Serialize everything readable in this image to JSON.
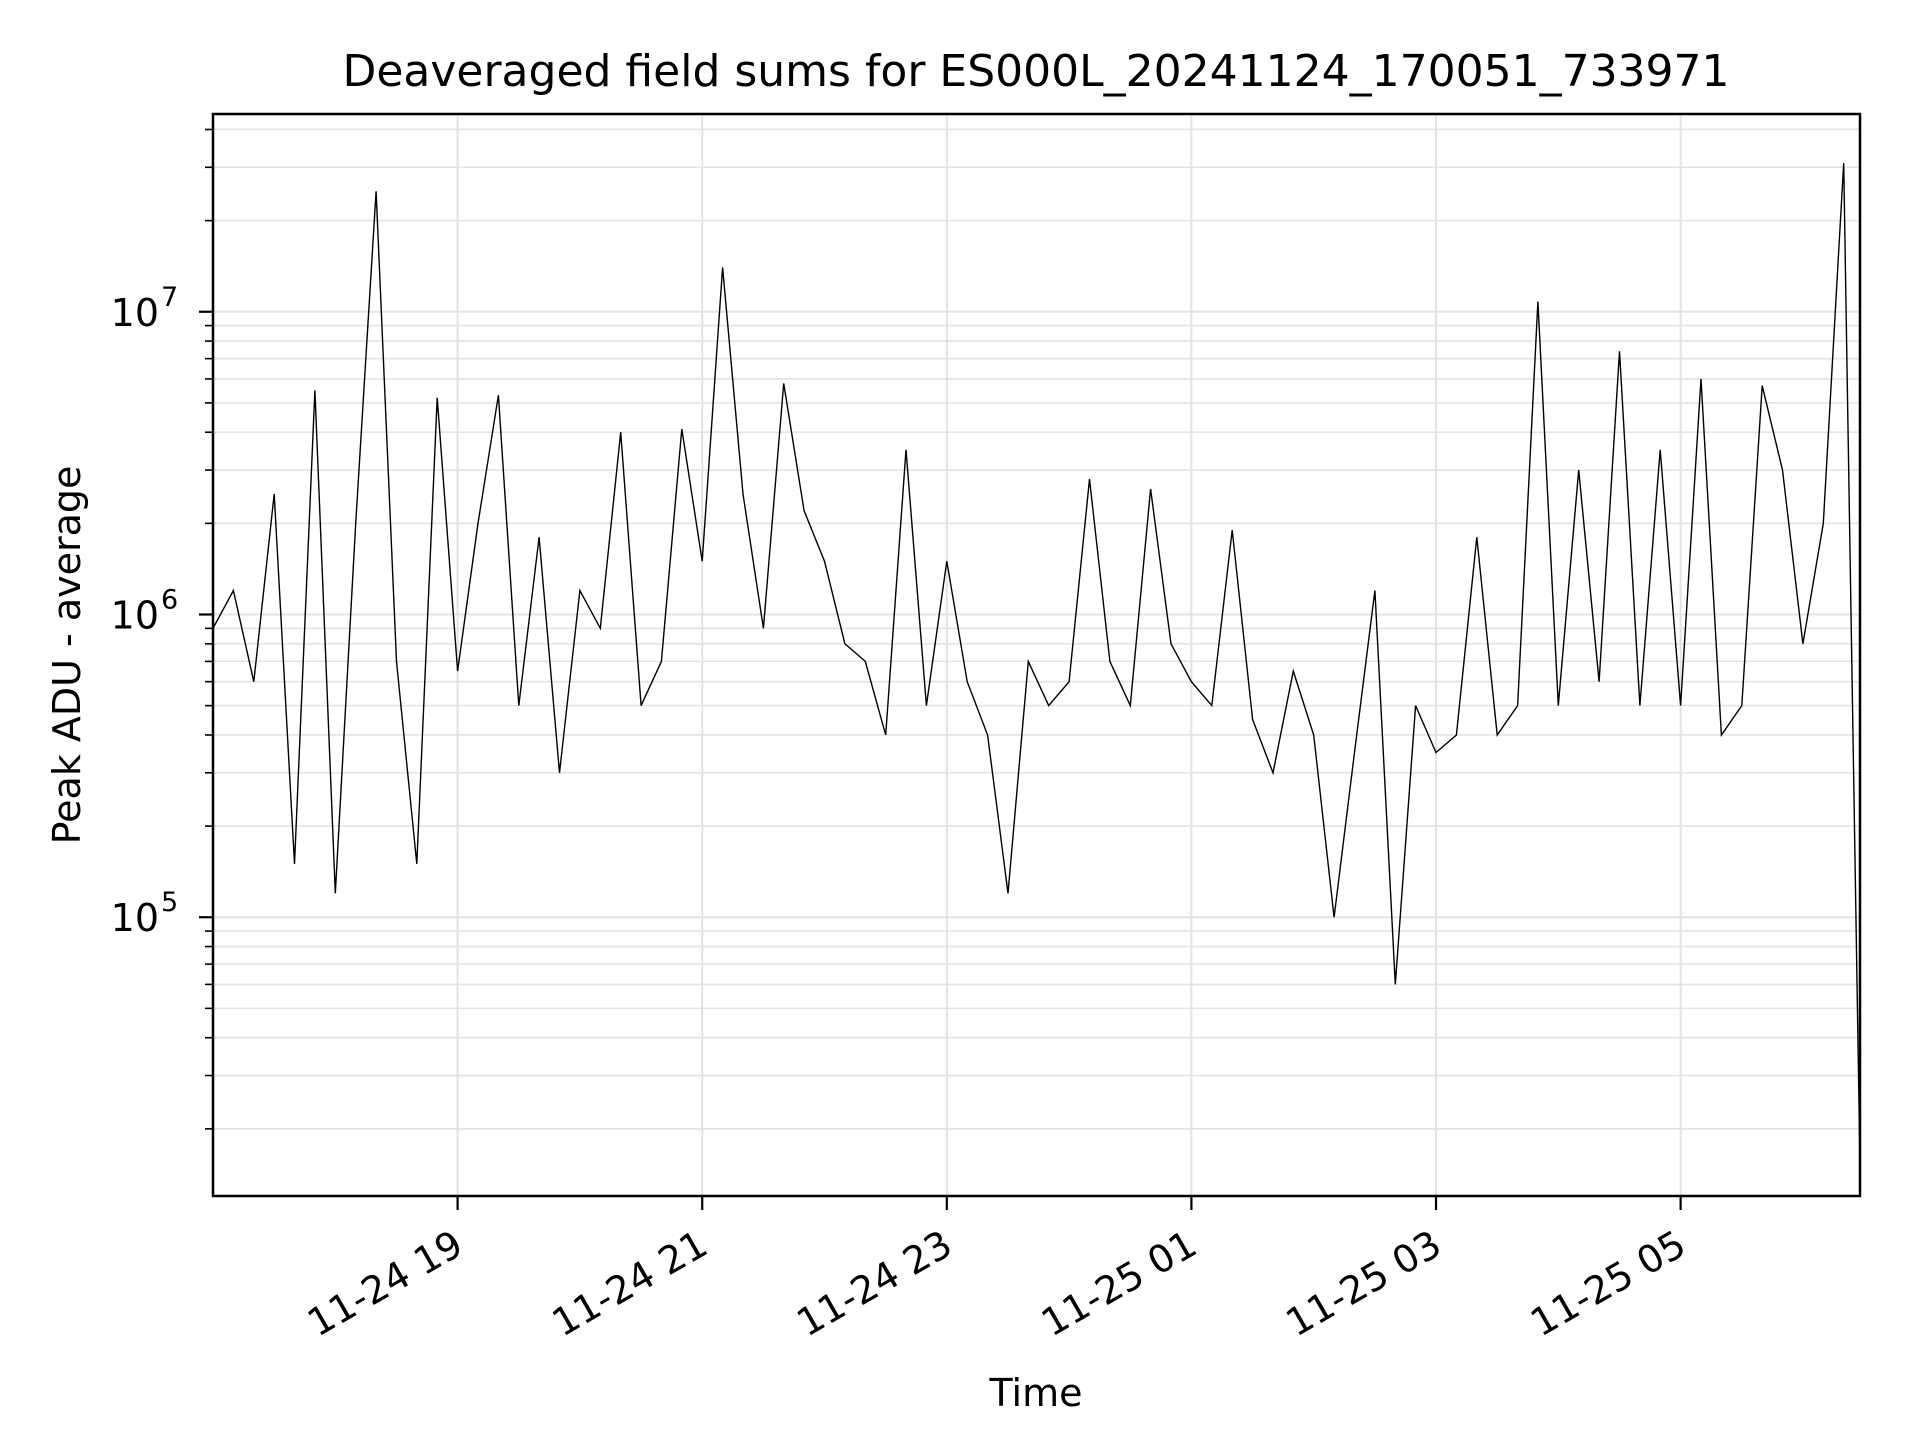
{
  "chart_data": {
    "type": "line",
    "title": "Deaveraged field sums for ES000L_20241124_170051_733971",
    "xlabel": "Time",
    "ylabel": "Peak ADU - average",
    "yscale": "log",
    "xlim": [
      "2024-11-24 17:00",
      "2024-11-25 06:28"
    ],
    "ylim": [
      12000,
      45000000
    ],
    "grid": true,
    "x_ticks": [
      {
        "value": "2024-11-24 19:00",
        "label": "11-24 19"
      },
      {
        "value": "2024-11-24 21:00",
        "label": "11-24 21"
      },
      {
        "value": "2024-11-24 23:00",
        "label": "11-24 23"
      },
      {
        "value": "2024-11-25 01:00",
        "label": "11-25 01"
      },
      {
        "value": "2024-11-25 03:00",
        "label": "11-25 03"
      },
      {
        "value": "2024-11-25 05:00",
        "label": "11-25 05"
      }
    ],
    "y_ticks": [
      {
        "value": 100000,
        "base": "10",
        "exp": "5"
      },
      {
        "value": 1000000,
        "base": "10",
        "exp": "6"
      },
      {
        "value": 10000000,
        "base": "10",
        "exp": "7"
      }
    ],
    "series": [
      {
        "color": "#000000",
        "x": [
          "2024-11-24 17:00",
          "2024-11-24 17:10",
          "2024-11-24 17:20",
          "2024-11-24 17:30",
          "2024-11-24 17:40",
          "2024-11-24 17:50",
          "2024-11-24 18:00",
          "2024-11-24 18:10",
          "2024-11-24 18:20",
          "2024-11-24 18:30",
          "2024-11-24 18:40",
          "2024-11-24 18:50",
          "2024-11-24 19:00",
          "2024-11-24 19:10",
          "2024-11-24 19:20",
          "2024-11-24 19:30",
          "2024-11-24 19:40",
          "2024-11-24 19:50",
          "2024-11-24 20:00",
          "2024-11-24 20:10",
          "2024-11-24 20:20",
          "2024-11-24 20:30",
          "2024-11-24 20:40",
          "2024-11-24 20:50",
          "2024-11-24 21:00",
          "2024-11-24 21:10",
          "2024-11-24 21:20",
          "2024-11-24 21:30",
          "2024-11-24 21:40",
          "2024-11-24 21:50",
          "2024-11-24 22:00",
          "2024-11-24 22:10",
          "2024-11-24 22:20",
          "2024-11-24 22:30",
          "2024-11-24 22:40",
          "2024-11-24 22:50",
          "2024-11-24 23:00",
          "2024-11-24 23:10",
          "2024-11-24 23:20",
          "2024-11-24 23:30",
          "2024-11-24 23:40",
          "2024-11-24 23:50",
          "2024-11-25 00:00",
          "2024-11-25 00:10",
          "2024-11-25 00:20",
          "2024-11-25 00:30",
          "2024-11-25 00:40",
          "2024-11-25 00:50",
          "2024-11-25 01:00",
          "2024-11-25 01:10",
          "2024-11-25 01:20",
          "2024-11-25 01:30",
          "2024-11-25 01:40",
          "2024-11-25 01:50",
          "2024-11-25 02:00",
          "2024-11-25 02:10",
          "2024-11-25 02:20",
          "2024-11-25 02:30",
          "2024-11-25 02:40",
          "2024-11-25 02:50",
          "2024-11-25 03:00",
          "2024-11-25 03:10",
          "2024-11-25 03:20",
          "2024-11-25 03:30",
          "2024-11-25 03:40",
          "2024-11-25 03:50",
          "2024-11-25 04:00",
          "2024-11-25 04:10",
          "2024-11-25 04:20",
          "2024-11-25 04:30",
          "2024-11-25 04:40",
          "2024-11-25 04:50",
          "2024-11-25 05:00",
          "2024-11-25 05:10",
          "2024-11-25 05:20",
          "2024-11-25 05:30",
          "2024-11-25 05:40",
          "2024-11-25 05:50",
          "2024-11-25 06:00",
          "2024-11-25 06:10",
          "2024-11-25 06:20",
          "2024-11-25 06:28"
        ],
        "y": [
          900000,
          1200000,
          600000,
          2500000,
          150000,
          5500000,
          120000,
          2000000,
          25000000,
          700000,
          150000,
          5200000,
          650000,
          2000000,
          5300000,
          500000,
          1800000,
          300000,
          1200000,
          900000,
          4000000,
          500000,
          700000,
          4100000,
          1500000,
          14000000,
          2500000,
          900000,
          5800000,
          2200000,
          1500000,
          800000,
          700000,
          400000,
          3500000,
          500000,
          1500000,
          600000,
          400000,
          120000,
          700000,
          500000,
          600000,
          2800000,
          700000,
          500000,
          2600000,
          800000,
          600000,
          500000,
          1900000,
          450000,
          300000,
          650000,
          400000,
          100000,
          350000,
          1200000,
          60000,
          500000,
          350000,
          400000,
          1800000,
          400000,
          500000,
          10800000,
          500000,
          3000000,
          600000,
          7400000,
          500000,
          3500000,
          500000,
          6000000,
          400000,
          500000,
          5700000,
          3000000,
          800000,
          2000000,
          31000000,
          15000
        ]
      }
    ]
  }
}
